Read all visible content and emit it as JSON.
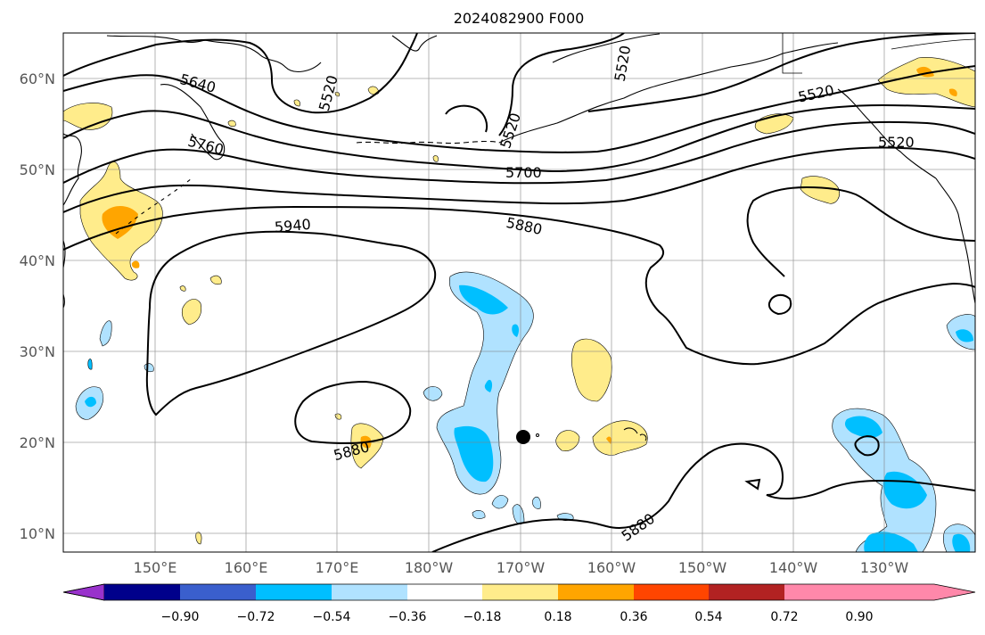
{
  "title": "2024082900 F000",
  "latitude_labels": [
    "60°N",
    "50°N",
    "40°N",
    "30°N",
    "20°N",
    "10°N"
  ],
  "longitude_labels": [
    "150°E",
    "160°E",
    "170°E",
    "180°W",
    "170°W",
    "160°W",
    "150°W",
    "140°W",
    "130°W"
  ],
  "contour_labels": [
    "5640",
    "5520",
    "5520",
    "5520",
    "5520",
    "5760",
    "5700",
    "5520",
    "5940",
    "5880",
    "5880",
    "5880"
  ],
  "colorbar": {
    "tick_labels": [
      "−0.90",
      "−0.72",
      "−0.54",
      "−0.36",
      "−0.18",
      "0.18",
      "0.36",
      "0.54",
      "0.72",
      "0.90"
    ],
    "colors": [
      "#9932cc",
      "#00008b",
      "#3a5fcd",
      "#00bfff",
      "#b0e2ff",
      "#ffffff",
      "#ffec8b",
      "#ffa500",
      "#ff4500",
      "#b22222",
      "#ff88aa"
    ]
  },
  "shading_colors": {
    "neg_light": "#b0e2ff",
    "neg_mid": "#00bfff",
    "pos_light": "#ffec8b",
    "pos_mid": "#ffa500"
  }
}
